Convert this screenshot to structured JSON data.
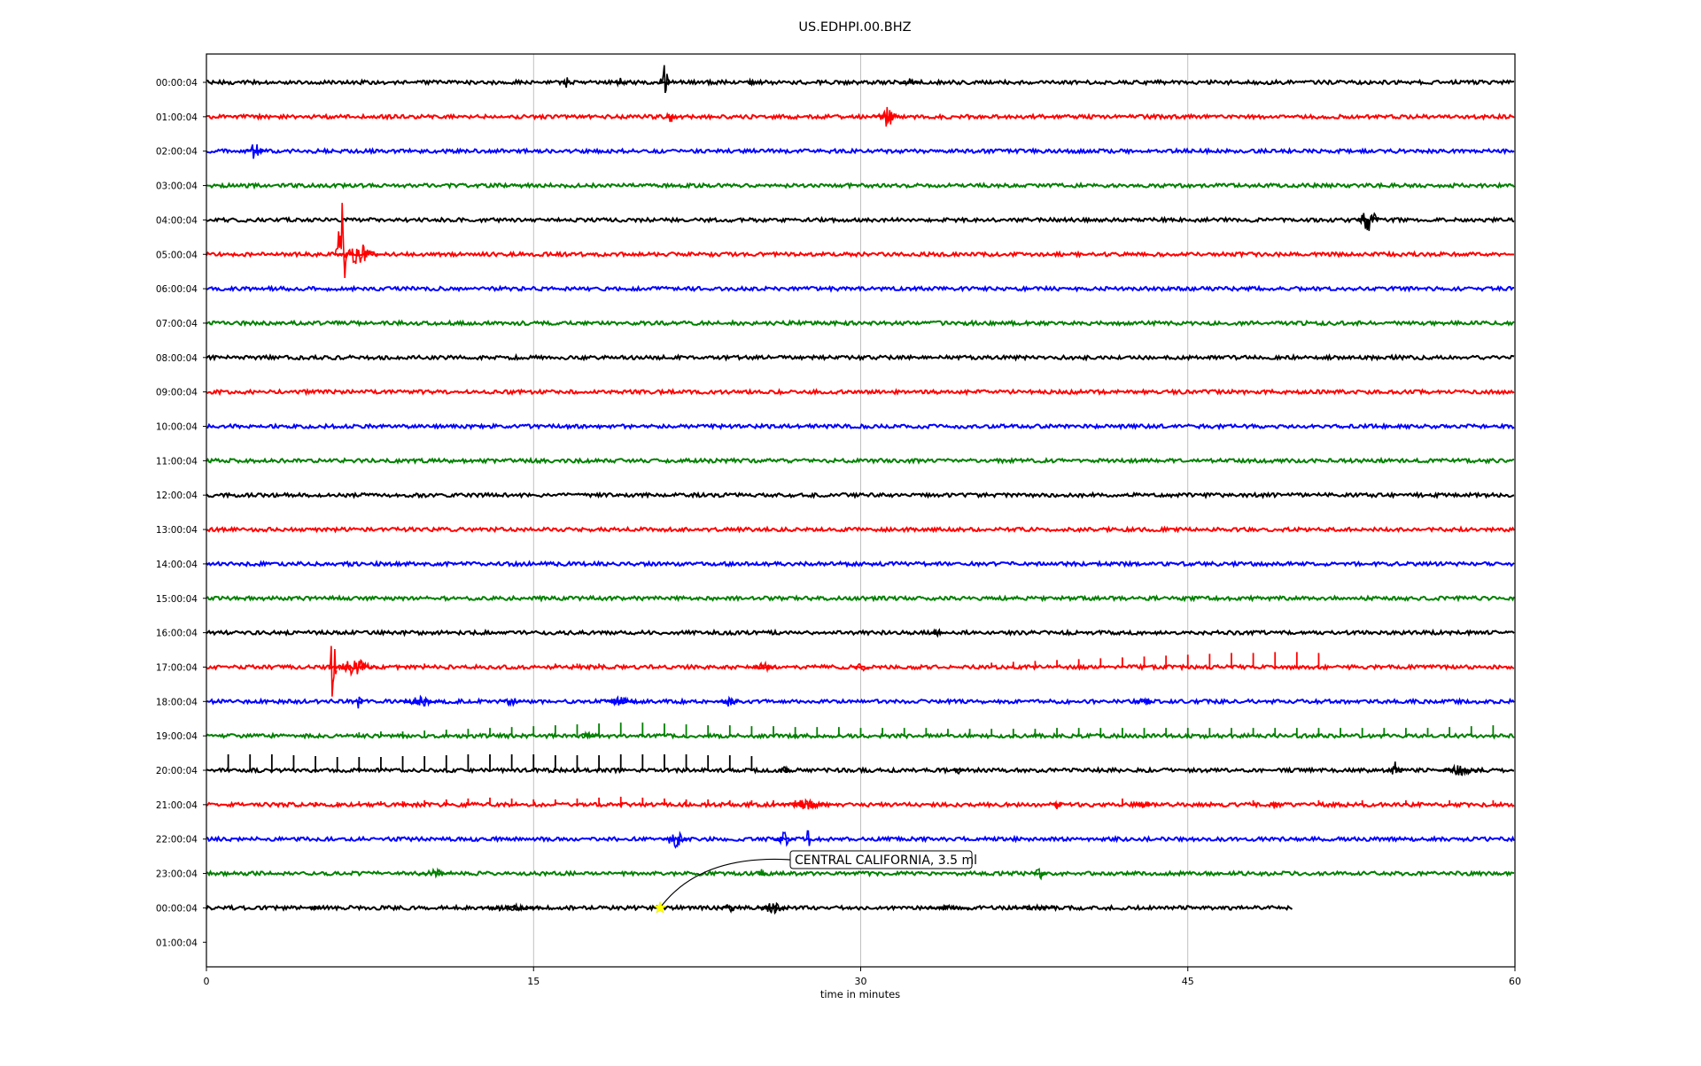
{
  "chart_data": {
    "type": "line",
    "title": "US.EDHPI.00.BHZ",
    "xlabel": "time in minutes",
    "ylabel": "",
    "xlim": [
      0,
      60
    ],
    "x_ticks": [
      0,
      15,
      30,
      45,
      60
    ],
    "x_tick_labels": [
      "0",
      "15",
      "30",
      "45",
      "60"
    ],
    "grid_x": true,
    "line_colors": [
      "#000000",
      "#ff0000",
      "#0000ff",
      "#008000"
    ],
    "row_labels": [
      "00:00:04",
      "01:00:04",
      "02:00:04",
      "03:00:04",
      "04:00:04",
      "05:00:04",
      "06:00:04",
      "07:00:04",
      "08:00:04",
      "09:00:04",
      "10:00:04",
      "11:00:04",
      "12:00:04",
      "13:00:04",
      "14:00:04",
      "15:00:04",
      "16:00:04",
      "17:00:04",
      "18:00:04",
      "19:00:04",
      "20:00:04",
      "21:00:04",
      "22:00:04",
      "23:00:04",
      "00:00:04",
      "01:00:04"
    ],
    "traces": [
      {
        "hour_row": 0,
        "end_min": 60,
        "events": [
          {
            "t": 16.5,
            "amp": 12,
            "w": 0.2
          },
          {
            "t": 19,
            "amp": 6,
            "w": 0.6
          },
          {
            "t": 21,
            "amp": 20,
            "w": 0.5
          },
          {
            "t": 25,
            "amp": 5,
            "w": 0.4
          },
          {
            "t": 32.3,
            "amp": 5,
            "w": 1.0
          }
        ]
      },
      {
        "hour_row": 1,
        "end_min": 60,
        "events": [
          {
            "t": 21.3,
            "amp": 14,
            "w": 0.5
          },
          {
            "t": 31.2,
            "amp": 12,
            "w": 1.2
          }
        ]
      },
      {
        "hour_row": 2,
        "end_min": 60,
        "events": [
          {
            "t": 2.2,
            "amp": 10,
            "w": 0.9
          }
        ]
      },
      {
        "hour_row": 3,
        "end_min": 60,
        "events": []
      },
      {
        "hour_row": 4,
        "end_min": 60,
        "events": [
          {
            "t": 53.3,
            "amp": 14,
            "w": 1.2
          }
        ]
      },
      {
        "hour_row": 5,
        "end_min": 60,
        "events": [
          {
            "t": 6.2,
            "amp": 60,
            "w": 0.6
          },
          {
            "t": 7,
            "amp": 12,
            "w": 2.0
          }
        ]
      },
      {
        "hour_row": 6,
        "end_min": 60,
        "events": []
      },
      {
        "hour_row": 7,
        "end_min": 60,
        "events": []
      },
      {
        "hour_row": 8,
        "end_min": 60,
        "events": []
      },
      {
        "hour_row": 9,
        "end_min": 60,
        "events": []
      },
      {
        "hour_row": 10,
        "end_min": 60,
        "events": []
      },
      {
        "hour_row": 11,
        "end_min": 60,
        "events": []
      },
      {
        "hour_row": 12,
        "end_min": 60,
        "events": []
      },
      {
        "hour_row": 13,
        "end_min": 60,
        "events": []
      },
      {
        "hour_row": 14,
        "end_min": 60,
        "events": []
      },
      {
        "hour_row": 15,
        "end_min": 60,
        "events": []
      },
      {
        "hour_row": 16,
        "end_min": 60,
        "events": [
          {
            "t": 33.5,
            "amp": 5,
            "w": 0.6
          }
        ]
      },
      {
        "hour_row": 17,
        "end_min": 60,
        "events": [
          {
            "t": 5.8,
            "amp": 42,
            "w": 0.4
          },
          {
            "t": 6.8,
            "amp": 10,
            "w": 2.2
          },
          {
            "t": 25.5,
            "amp": 6,
            "w": 1.2
          },
          {
            "t": 30,
            "amp": 6,
            "w": 0.8
          }
        ],
        "spikes": {
          "times": [
            10,
            16,
            17,
            18,
            36,
            37,
            38,
            39,
            40,
            41,
            42,
            43,
            44,
            45,
            46,
            47,
            48,
            49,
            50,
            51
          ],
          "amp": [
            4,
            4,
            4,
            4,
            5,
            6,
            7,
            8,
            9,
            10,
            11,
            12,
            13,
            14,
            15,
            16,
            16,
            17,
            17,
            16
          ]
        }
      },
      {
        "hour_row": 18,
        "end_min": 60,
        "events": [
          {
            "t": 7,
            "amp": 9,
            "w": 0.4
          },
          {
            "t": 9.8,
            "amp": 6,
            "w": 2.0
          },
          {
            "t": 14,
            "amp": 6,
            "w": 1.0
          },
          {
            "t": 19,
            "amp": 6,
            "w": 1.5
          },
          {
            "t": 24,
            "amp": 6,
            "w": 1.2
          },
          {
            "t": 43,
            "amp": 6,
            "w": 0.8
          }
        ]
      },
      {
        "hour_row": 19,
        "end_min": 60,
        "events": [
          {
            "t": 17.5,
            "amp": 8,
            "w": 0.8
          }
        ],
        "spikes": {
          "times": [
            7,
            8,
            9,
            10,
            11,
            12,
            13,
            14,
            15,
            16,
            17,
            18,
            19,
            20,
            21,
            22,
            23,
            24,
            25,
            26,
            27,
            28,
            29,
            30,
            31,
            32,
            33,
            34,
            35,
            36,
            37,
            38,
            39,
            40,
            41,
            42,
            43,
            44,
            45,
            46,
            47,
            48,
            49,
            50,
            51,
            52,
            53,
            54,
            55,
            56,
            57,
            58,
            59
          ],
          "amp": [
            4,
            5,
            5,
            6,
            7,
            8,
            9,
            10,
            11,
            12,
            13,
            14,
            15,
            15,
            14,
            13,
            12,
            12,
            11,
            11,
            10,
            10,
            10,
            9,
            9,
            9,
            9,
            8,
            8,
            8,
            8,
            8,
            9,
            9,
            9,
            9,
            9,
            9,
            9,
            9,
            9,
            9,
            9,
            9,
            9,
            9,
            9,
            9,
            9,
            9,
            10,
            11,
            12
          ]
        }
      },
      {
        "hour_row": 20,
        "end_min": 60,
        "events": [
          {
            "t": 26.5,
            "amp": 6,
            "w": 0.6
          },
          {
            "t": 34.5,
            "amp": 5,
            "w": 0.5
          },
          {
            "t": 54.5,
            "amp": 10,
            "w": 0.8
          },
          {
            "t": 57.5,
            "amp": 6,
            "w": 2.2
          }
        ],
        "spikes": {
          "times": [
            1,
            2,
            3,
            4,
            5,
            6,
            7,
            8,
            9,
            10,
            11,
            12,
            13,
            14,
            15,
            16,
            17,
            18,
            19,
            20,
            21,
            22,
            23,
            24,
            25
          ],
          "amp": [
            18,
            18,
            18,
            17,
            16,
            15,
            15,
            15,
            16,
            16,
            17,
            18,
            18,
            18,
            18,
            17,
            17,
            17,
            18,
            18,
            18,
            18,
            17,
            17,
            16
          ]
        }
      },
      {
        "hour_row": 21,
        "end_min": 60,
        "events": [
          {
            "t": 27.5,
            "amp": 6,
            "w": 2.4
          },
          {
            "t": 39,
            "amp": 7,
            "w": 0.5
          },
          {
            "t": 43,
            "amp": 5,
            "w": 0.8
          },
          {
            "t": 49,
            "amp": 6,
            "w": 0.4
          }
        ],
        "spikes": {
          "times": [
            5,
            6,
            7,
            8,
            9,
            10,
            11,
            12,
            13,
            14,
            15,
            16,
            17,
            18,
            19,
            20,
            21,
            22,
            23,
            24,
            25,
            26,
            27,
            42,
            48,
            51,
            53,
            55,
            57,
            59
          ],
          "amp": [
            3,
            3,
            4,
            4,
            4,
            5,
            6,
            7,
            8,
            7,
            6,
            6,
            7,
            8,
            9,
            8,
            7,
            6,
            6,
            5,
            5,
            5,
            5,
            7,
            5,
            5,
            5,
            5,
            5,
            5
          ]
        }
      },
      {
        "hour_row": 22,
        "end_min": 60,
        "events": [
          {
            "t": 21.5,
            "amp": 10,
            "w": 1.2
          },
          {
            "t": 26.5,
            "amp": 8,
            "w": 1.0
          },
          {
            "t": 27.6,
            "amp": 14,
            "w": 0.2
          }
        ]
      },
      {
        "hour_row": 23,
        "end_min": 60,
        "events": [
          {
            "t": 10.5,
            "amp": 5,
            "w": 1.5
          },
          {
            "t": 25.5,
            "amp": 6,
            "w": 0.5
          },
          {
            "t": 38.2,
            "amp": 10,
            "w": 0.6
          }
        ]
      },
      {
        "hour_row": 24,
        "end_min": 49.8,
        "events": [
          {
            "t": 5,
            "amp": 4,
            "w": 0.8
          },
          {
            "t": 14,
            "amp": 5,
            "w": 3.0
          },
          {
            "t": 24,
            "amp": 5,
            "w": 0.8
          },
          {
            "t": 26,
            "amp": 7,
            "w": 1.5
          },
          {
            "t": 34,
            "amp": 3,
            "w": 2.0
          },
          {
            "t": 38,
            "amp": 3,
            "w": 2.0
          }
        ]
      }
    ],
    "annotation": {
      "text": "CENTRAL CALIFORNIA, 3.5 ml",
      "event_row": 24,
      "event_time_min": 20.8
    }
  }
}
